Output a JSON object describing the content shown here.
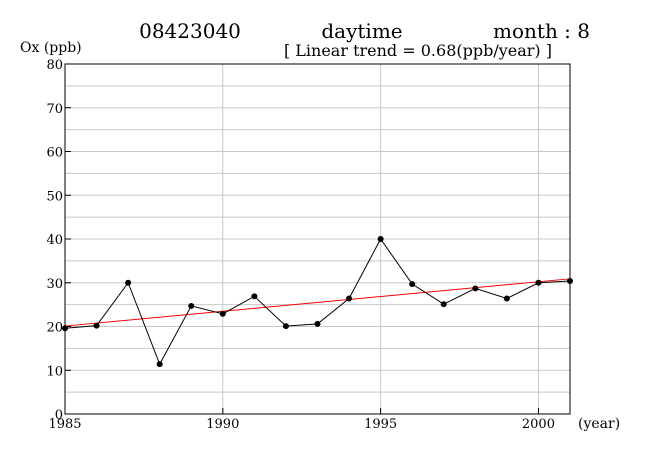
{
  "header": {
    "station": "08423040",
    "period": "daytime",
    "month": "month : 8",
    "trend": "[ Linear trend = 0.68(ppb/year) ]"
  },
  "chart_data": {
    "type": "line",
    "ylabel": "Ox (ppb)",
    "xlabel": "(year)",
    "xlim": [
      1985,
      2001
    ],
    "ylim": [
      0,
      80
    ],
    "x_ticks": [
      1985,
      1990,
      1995,
      2000
    ],
    "y_ticks": [
      0,
      10,
      20,
      30,
      40,
      50,
      60,
      70,
      80
    ],
    "grid": true,
    "x": [
      1985,
      1986,
      1987,
      1988,
      1989,
      1990,
      1991,
      1992,
      1993,
      1994,
      1995,
      1996,
      1997,
      1998,
      1999,
      2000,
      2001
    ],
    "series": [
      {
        "values": [
          19.6,
          20.2,
          30.0,
          11.4,
          24.7,
          22.9,
          26.9,
          20.1,
          20.6,
          26.4,
          40.0,
          29.7,
          25.1,
          28.7,
          26.4,
          30.0,
          30.4
        ],
        "color": "#000000"
      }
    ],
    "trend_line": {
      "x": [
        1985,
        2001
      ],
      "y": [
        20.1,
        30.9
      ],
      "color": "#ff0000"
    }
  }
}
